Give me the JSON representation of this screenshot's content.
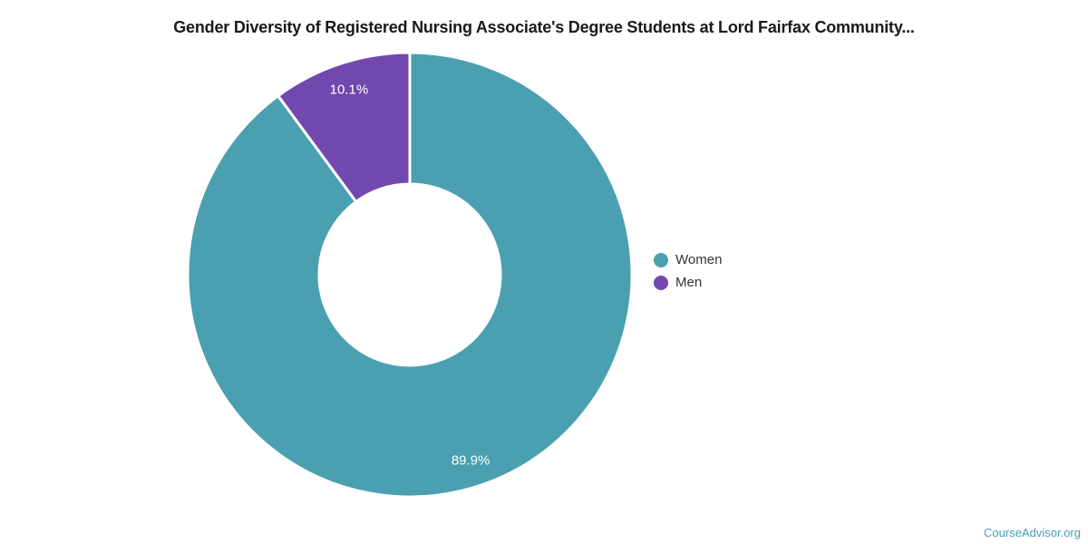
{
  "title": "Gender Diversity of Registered Nursing Associate's Degree Students at Lord Fairfax Community...",
  "watermark": "CourseAdvisor.org",
  "chart_data": {
    "type": "pie",
    "donut": true,
    "title": "Gender Diversity of Registered Nursing Associate's Degree Students at Lord Fairfax Community...",
    "legend_position": "right",
    "start_angle_deg": 0,
    "direction": "clockwise",
    "label_color": "#ffffff",
    "divider_color": "#ffffff",
    "series": [
      {
        "name": "Women",
        "value": 89.9,
        "label": "89.9%",
        "color": "#4aa0b0"
      },
      {
        "name": "Men",
        "value": 10.1,
        "label": "10.1%",
        "color": "#7148ad"
      }
    ]
  }
}
